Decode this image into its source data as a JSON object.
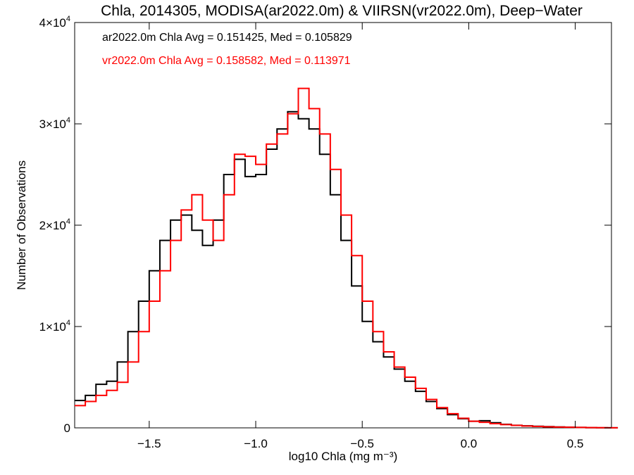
{
  "chart_data": {
    "type": "line",
    "step": true,
    "title": "Chla, 2014305, MODISA(ar2022.0m) & VIIRSN(vr2022.0m), Deep−Water",
    "xlabel": "log10 Chla (mg m⁻³)",
    "ylabel": "Number of Observations",
    "xlim": [
      -1.85,
      0.67
    ],
    "ylim": [
      0,
      40000
    ],
    "x_ticks": [
      {
        "value": -1.5,
        "label": "−1.5"
      },
      {
        "value": -1.0,
        "label": "−1.0"
      },
      {
        "value": -0.5,
        "label": "−0.5"
      },
      {
        "value": 0.0,
        "label": "0.0"
      },
      {
        "value": 0.5,
        "label": "0.5"
      }
    ],
    "y_ticks": [
      {
        "value": 0,
        "mant": "0",
        "exp": ""
      },
      {
        "value": 10000,
        "mant": "1×10",
        "exp": "4"
      },
      {
        "value": 20000,
        "mant": "2×10",
        "exp": "4"
      },
      {
        "value": 30000,
        "mant": "3×10",
        "exp": "4"
      },
      {
        "value": 40000,
        "mant": "4×10",
        "exp": "4"
      }
    ],
    "grid": false,
    "annotations": [
      {
        "text": "ar2022.0m Chla Avg = 0.151425, Med = 0.105829",
        "color": "#000000"
      },
      {
        "text": "vr2022.0m Chla Avg = 0.158582, Med = 0.113971",
        "color": "#ff0000"
      }
    ],
    "series": [
      {
        "color": "#000000",
        "x": [
          -1.85,
          -1.8,
          -1.75,
          -1.7,
          -1.65,
          -1.6,
          -1.55,
          -1.5,
          -1.45,
          -1.4,
          -1.35,
          -1.3,
          -1.25,
          -1.2,
          -1.15,
          -1.1,
          -1.05,
          -1.0,
          -0.95,
          -0.9,
          -0.85,
          -0.8,
          -0.75,
          -0.7,
          -0.65,
          -0.6,
          -0.55,
          -0.5,
          -0.45,
          -0.4,
          -0.35,
          -0.3,
          -0.25,
          -0.2,
          -0.15,
          -0.1,
          -0.05,
          0.0,
          0.05,
          0.1,
          0.15,
          0.2,
          0.25,
          0.3,
          0.35,
          0.4,
          0.45,
          0.5,
          0.55,
          0.6,
          0.65
        ],
        "y": [
          2700,
          3200,
          4300,
          4600,
          6500,
          9500,
          12500,
          15500,
          18500,
          20500,
          21000,
          19500,
          18000,
          20500,
          25000,
          26500,
          24800,
          25000,
          27500,
          29500,
          31200,
          30500,
          29500,
          27000,
          23000,
          18500,
          14000,
          10500,
          8500,
          7000,
          5800,
          4600,
          3600,
          2600,
          1900,
          1300,
          900,
          650,
          700,
          500,
          350,
          250,
          200,
          160,
          120,
          90,
          60,
          40,
          20,
          10,
          5
        ]
      },
      {
        "color": "#ff0000",
        "x": [
          -1.85,
          -1.8,
          -1.75,
          -1.7,
          -1.65,
          -1.6,
          -1.55,
          -1.5,
          -1.45,
          -1.4,
          -1.35,
          -1.3,
          -1.25,
          -1.2,
          -1.15,
          -1.1,
          -1.05,
          -1.0,
          -0.95,
          -0.9,
          -0.85,
          -0.8,
          -0.75,
          -0.7,
          -0.65,
          -0.6,
          -0.55,
          -0.5,
          -0.45,
          -0.4,
          -0.35,
          -0.3,
          -0.25,
          -0.2,
          -0.15,
          -0.1,
          -0.05,
          0.0,
          0.05,
          0.1,
          0.15,
          0.2,
          0.25,
          0.3,
          0.35,
          0.4,
          0.45,
          0.5,
          0.55,
          0.6,
          0.65
        ],
        "y": [
          2200,
          2600,
          3200,
          3700,
          4500,
          6500,
          9500,
          12500,
          15500,
          18500,
          21500,
          23000,
          20500,
          18500,
          23000,
          27000,
          26800,
          26000,
          28000,
          29000,
          31000,
          33500,
          31500,
          29000,
          25500,
          21000,
          17000,
          12500,
          9500,
          7500,
          6000,
          5000,
          3900,
          2800,
          2000,
          1400,
          950,
          650,
          550,
          420,
          320,
          240,
          180,
          140,
          100,
          80,
          60,
          40,
          30,
          20,
          10
        ]
      }
    ]
  }
}
